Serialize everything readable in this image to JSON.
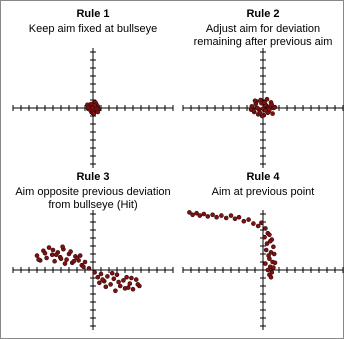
{
  "chart_data": [
    {
      "type": "scatter",
      "title": "Rule 1",
      "subtitle": [
        "Keep aim fixed at bullseye"
      ],
      "color": "#7a1414",
      "xlim": [
        -10,
        10
      ],
      "ylim": [
        -7.5,
        7.5
      ],
      "xticks": [
        -10,
        -9,
        -8,
        -7,
        -6,
        -5,
        -4,
        -3,
        -2,
        -1,
        1,
        2,
        3,
        4,
        5,
        6,
        7,
        8,
        9,
        10
      ],
      "yticks": [
        -7,
        -6,
        -5,
        -4,
        -3,
        -2,
        -1,
        1,
        2,
        3,
        4,
        5,
        6,
        7
      ],
      "x": [
        0,
        0.3,
        -0.4,
        0.6,
        -0.2,
        0.1,
        -0.6,
        0.4,
        -0.1,
        0.2,
        -0.3,
        0.5,
        -0.5,
        0.7,
        -0.7,
        0.0,
        0.3,
        -0.2,
        0.1,
        -0.4,
        0.6,
        -0.6,
        0.2,
        -0.1,
        0.4
      ],
      "y": [
        0.1,
        -0.3,
        0.4,
        0.2,
        -0.5,
        0.6,
        -0.1,
        0.5,
        -0.6,
        0.0,
        0.3,
        -0.4,
        0.2,
        -0.2,
        0.4,
        -0.3,
        0.7,
        0.5,
        -0.7,
        -0.2,
        -0.5,
        0.1,
        0.3,
        0.0,
        -0.1
      ]
    },
    {
      "type": "scatter",
      "title": "Rule 2",
      "subtitle": [
        "Adjust aim for deviation",
        "remaining after previous aim"
      ],
      "color": "#7a1414",
      "xlim": [
        -10,
        10
      ],
      "ylim": [
        -7.5,
        7.5
      ],
      "xticks": [
        -10,
        -9,
        -8,
        -7,
        -6,
        -5,
        -4,
        -3,
        -2,
        -1,
        1,
        2,
        3,
        4,
        5,
        6,
        7,
        8,
        9,
        10
      ],
      "yticks": [
        -7,
        -6,
        -5,
        -4,
        -3,
        -2,
        -1,
        1,
        2,
        3,
        4,
        5,
        6,
        7
      ],
      "x": [
        -1.4,
        -1.1,
        -0.8,
        -0.5,
        -0.2,
        0.1,
        0.4,
        0.7,
        1.0,
        1.3,
        -1.2,
        -0.9,
        -0.6,
        -0.3,
        0.0,
        0.3,
        0.6,
        0.9,
        1.2,
        1.5,
        -1.0,
        -0.4,
        0.2,
        0.8,
        -0.7,
        0.5,
        -0.1,
        1.1,
        -1.5,
        0.3
      ],
      "y": [
        0.2,
        -0.5,
        0.8,
        -0.2,
        0.6,
        -0.9,
        0.3,
        -0.4,
        0.7,
        0.0,
        -0.3,
        0.5,
        -0.8,
        1.0,
        -0.1,
        0.4,
        -0.6,
        0.2,
        -0.7,
        0.1,
        0.9,
        -0.6,
        0.7,
        -0.2,
        0.0,
        1.1,
        -1.0,
        0.4,
        -0.2,
        -0.3
      ]
    },
    {
      "type": "scatter",
      "title": "Rule 3",
      "subtitle": [
        "Aim opposite previous deviation",
        "from bullseye (Hit)"
      ],
      "color": "#7a1414",
      "xlim": [
        -10,
        10
      ],
      "ylim": [
        -7.5,
        7.5
      ],
      "xticks": [
        -10,
        -9,
        -8,
        -7,
        -6,
        -5,
        -4,
        -3,
        -2,
        -1,
        1,
        2,
        3,
        4,
        5,
        6,
        7,
        8,
        9,
        10
      ],
      "yticks": [
        -7,
        -6,
        -5,
        -4,
        -3,
        -2,
        -1,
        1,
        2,
        3,
        4,
        5,
        6,
        7
      ],
      "x": [
        -7,
        -6.6,
        -6.2,
        -5.8,
        -5.5,
        -5.1,
        -4.8,
        -4.4,
        -4.1,
        -3.7,
        -3.3,
        -3,
        -2.6,
        -2.2,
        -1.8,
        -1.4,
        -1,
        -6,
        -5,
        -4,
        -3.5,
        -2.8,
        -2,
        -1.2,
        -0.5,
        -6.8,
        -4.6,
        -3.8,
        -2.4,
        -1.6,
        0.2,
        0.6,
        1,
        1.4,
        1.8,
        2.2,
        2.6,
        3,
        3.4,
        3.8,
        4.2,
        4.6,
        5,
        5.4,
        5.8,
        0.8,
        1.6,
        2.4,
        3.2,
        4,
        4.8,
        5.6,
        1.2,
        2.8,
        4.4
      ],
      "y": [
        1.8,
        1.2,
        2.4,
        1.5,
        2.8,
        1.9,
        1.1,
        2.2,
        1.6,
        2.6,
        1.3,
        2,
        0.9,
        1.7,
        1.2,
        0.6,
        1,
        2.1,
        2.5,
        1.4,
        0.8,
        2.3,
        1.5,
        0.4,
        0.2,
        1.3,
        1.9,
        2.9,
        1.1,
        1.8,
        -0.3,
        -0.9,
        -0.5,
        -1.4,
        -0.8,
        -1.8,
        -1.1,
        -0.6,
        -2,
        -1.3,
        -0.9,
        -1.7,
        -2.4,
        -1.2,
        -2,
        -1.6,
        -2.1,
        -0.4,
        -1.5,
        -2.3,
        -1,
        -1.8,
        -1.2,
        -2.6,
        -2.2
      ]
    },
    {
      "type": "scatter",
      "title": "Rule 4",
      "subtitle": [
        "Aim at previous point"
      ],
      "color": "#7a1414",
      "xlim": [
        -10,
        10
      ],
      "ylim": [
        -7.5,
        7.5
      ],
      "xticks": [
        -10,
        -9,
        -8,
        -7,
        -6,
        -5,
        -4,
        -3,
        -2,
        -1,
        1,
        2,
        3,
        4,
        5,
        6,
        7,
        8,
        9,
        10
      ],
      "yticks": [
        -7,
        -6,
        -5,
        -4,
        -3,
        -2,
        -1,
        1,
        2,
        3,
        4,
        5,
        6,
        7
      ],
      "x": [
        -9.2,
        -8.8,
        -8.3,
        -7.9,
        -7.4,
        -6.9,
        -6.3,
        -5.8,
        -5.2,
        -4.6,
        -4,
        -3.5,
        -3,
        -2.4,
        -1.8,
        -1.2,
        -0.6,
        -0.2,
        0.3,
        0.6,
        0.2,
        0.8,
        1.1,
        0.5,
        0.9,
        1.3,
        0.4,
        1,
        0.7,
        1.4,
        0.8,
        1.2,
        0.3,
        0.9,
        1.5,
        0.6,
        1.1,
        0.8,
        1.3,
        1
      ],
      "y": [
        7.2,
        6.9,
        7.1,
        6.8,
        7,
        6.7,
        6.9,
        6.6,
        6.8,
        6.5,
        6.8,
        6.4,
        6.6,
        6.1,
        6.3,
        5.8,
        5.5,
        5.9,
        5.2,
        4.6,
        4.1,
        4.4,
        3.8,
        3.3,
        3.6,
        2.9,
        2.5,
        2.2,
        1.8,
        2,
        1.4,
        1,
        0.8,
        0.4,
        0.9,
        0,
        -0.3,
        -0.6,
        0.3,
        -0.9
      ]
    }
  ]
}
